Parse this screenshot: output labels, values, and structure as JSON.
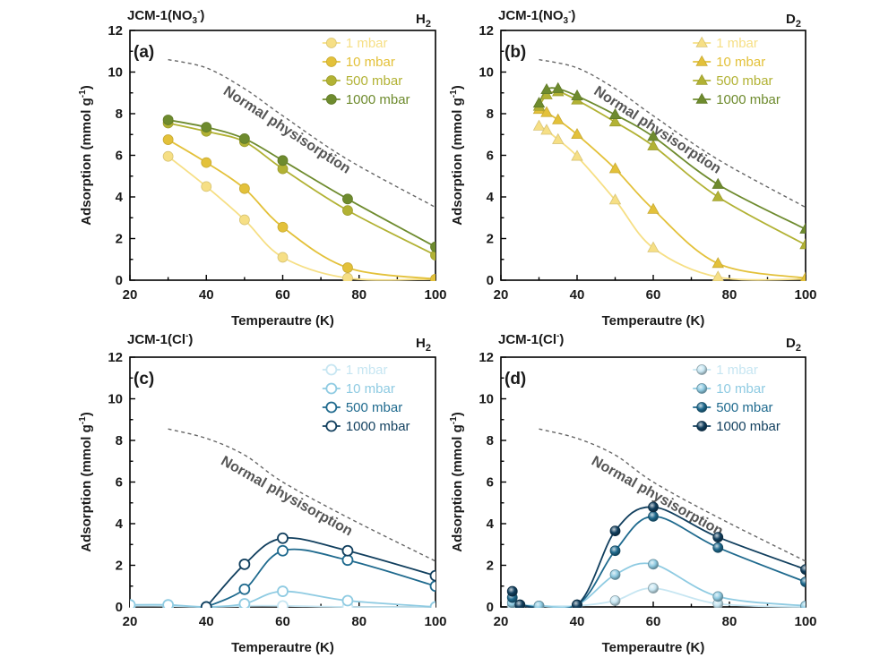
{
  "chart_data": [
    {
      "type": "line",
      "panel_label": "(a)",
      "material": "JCM-1(NO",
      "material_sub": "3",
      "material_sup": "-",
      "material_close": ")",
      "gas": "H",
      "gas_sub": "2",
      "xlabel": "Temperautre (K)",
      "ylabel": "Adsorption (mmol g",
      "ylabel_sup": "-1",
      "ylabel_close": ")",
      "xlim": [
        20,
        100
      ],
      "ylim": [
        0,
        12
      ],
      "xticks": [
        "20",
        "40",
        "60",
        "80",
        "100"
      ],
      "yticks": [
        "0",
        "2",
        "4",
        "6",
        "8",
        "10",
        "12"
      ],
      "marker": "circle",
      "hollow": false,
      "annotation": "Normal physisorption",
      "reference_curve": {
        "x": [
          30,
          40,
          50,
          60,
          77,
          100
        ],
        "y": [
          10.6,
          10.2,
          9.2,
          7.9,
          5.8,
          3.5
        ]
      },
      "series": [
        {
          "name": "1 mbar",
          "color": "#f6df85",
          "x": [
            30,
            40,
            50,
            60,
            77,
            100
          ],
          "y": [
            5.95,
            4.5,
            2.9,
            1.1,
            0.1,
            0.05
          ]
        },
        {
          "name": "10 mbar",
          "color": "#e3c13a",
          "x": [
            30,
            40,
            50,
            60,
            77,
            100
          ],
          "y": [
            6.75,
            5.65,
            4.4,
            2.55,
            0.6,
            0.05
          ]
        },
        {
          "name": "500 mbar",
          "color": "#b2b234",
          "x": [
            30,
            40,
            50,
            60,
            77,
            100
          ],
          "y": [
            7.55,
            7.15,
            6.65,
            5.35,
            3.35,
            1.2
          ]
        },
        {
          "name": "1000 mbar",
          "color": "#6e8b2e",
          "x": [
            30,
            40,
            50,
            60,
            77,
            100
          ],
          "y": [
            7.7,
            7.35,
            6.8,
            5.75,
            3.9,
            1.6
          ]
        }
      ]
    },
    {
      "type": "line",
      "panel_label": "(b)",
      "material": "JCM-1(NO",
      "material_sub": "3",
      "material_sup": "-",
      "material_close": ")",
      "gas": "D",
      "gas_sub": "2",
      "xlabel": "Temperautre (K)",
      "ylabel": "Adsorption (mmol g",
      "ylabel_sup": "-1",
      "ylabel_close": ")",
      "xlim": [
        20,
        100
      ],
      "ylim": [
        0,
        12
      ],
      "xticks": [
        "20",
        "40",
        "60",
        "80",
        "100"
      ],
      "yticks": [
        "0",
        "2",
        "4",
        "6",
        "8",
        "10",
        "12"
      ],
      "marker": "triangle",
      "hollow": false,
      "annotation": "Normal physisorption",
      "reference_curve": {
        "x": [
          30,
          40,
          50,
          60,
          77,
          100
        ],
        "y": [
          10.6,
          10.2,
          9.2,
          7.9,
          5.8,
          3.5
        ]
      },
      "series": [
        {
          "name": "1 mbar",
          "color": "#f6df85",
          "x": [
            30,
            32,
            35,
            40,
            50,
            60,
            77,
            100
          ],
          "y": [
            7.4,
            7.2,
            6.75,
            5.95,
            3.85,
            1.55,
            0.15,
            0.05
          ]
        },
        {
          "name": "10 mbar",
          "color": "#e3c13a",
          "x": [
            30,
            32,
            35,
            40,
            50,
            60,
            77,
            100
          ],
          "y": [
            8.2,
            8.05,
            7.7,
            7.0,
            5.35,
            3.4,
            0.8,
            0.1
          ]
        },
        {
          "name": "500 mbar",
          "color": "#b2b234",
          "x": [
            30,
            32,
            35,
            40,
            50,
            60,
            77,
            100
          ],
          "y": [
            8.35,
            8.9,
            9.05,
            8.65,
            7.6,
            6.45,
            4.0,
            1.7
          ]
        },
        {
          "name": "1000 mbar",
          "color": "#6e8b2e",
          "x": [
            30,
            32,
            35,
            40,
            50,
            60,
            77,
            100
          ],
          "y": [
            8.5,
            9.15,
            9.2,
            8.85,
            7.95,
            6.9,
            4.6,
            2.45
          ]
        }
      ]
    },
    {
      "type": "line",
      "panel_label": "(c)",
      "material": "JCM-1(Cl",
      "material_sub": "",
      "material_sup": "-",
      "material_close": ")",
      "gas": "H",
      "gas_sub": "2",
      "xlabel": "Temperautre (K)",
      "ylabel": "Adsorption (mmol g",
      "ylabel_sup": "-1",
      "ylabel_close": ")",
      "xlim": [
        20,
        100
      ],
      "ylim": [
        0,
        12
      ],
      "xticks": [
        "20",
        "40",
        "60",
        "80",
        "100"
      ],
      "yticks": [
        "0",
        "2",
        "4",
        "6",
        "8",
        "10",
        "12"
      ],
      "marker": "circle",
      "hollow": true,
      "annotation": "Normal physisorption",
      "reference_curve": {
        "x": [
          30,
          40,
          50,
          60,
          77,
          100
        ],
        "y": [
          8.55,
          8.1,
          7.3,
          6.0,
          4.3,
          2.2
        ]
      },
      "series": [
        {
          "name": "1 mbar",
          "color": "#c7e6f2",
          "x": [
            20,
            30,
            40,
            50,
            60,
            77,
            100
          ],
          "y": [
            0.05,
            0.05,
            0.0,
            0.05,
            0.05,
            0.0,
            0.0
          ]
        },
        {
          "name": "10 mbar",
          "color": "#8fcbe2",
          "x": [
            20,
            30,
            40,
            50,
            60,
            77,
            100
          ],
          "y": [
            0.1,
            0.1,
            0.0,
            0.15,
            0.75,
            0.3,
            0.0
          ]
        },
        {
          "name": "500 mbar",
          "color": "#1f6a8e",
          "x": [
            40,
            50,
            60,
            77,
            100
          ],
          "y": [
            0.0,
            0.85,
            2.7,
            2.25,
            1.0
          ]
        },
        {
          "name": "1000 mbar",
          "color": "#113f5e",
          "x": [
            40,
            50,
            60,
            77,
            100
          ],
          "y": [
            0.0,
            2.05,
            3.3,
            2.7,
            1.5
          ]
        }
      ]
    },
    {
      "type": "line",
      "panel_label": "(d)",
      "material": "JCM-1(Cl",
      "material_sub": "",
      "material_sup": "-",
      "material_close": ")",
      "gas": "D",
      "gas_sub": "2",
      "xlabel": "Temperautre (K)",
      "ylabel": "Adsorption (mmol g",
      "ylabel_sup": "-1",
      "ylabel_close": ")",
      "xlim": [
        20,
        100
      ],
      "ylim": [
        0,
        12
      ],
      "xticks": [
        "20",
        "40",
        "60",
        "80",
        "100"
      ],
      "yticks": [
        "0",
        "2",
        "4",
        "6",
        "8",
        "10",
        "12"
      ],
      "marker": "sphere",
      "hollow": false,
      "annotation": "Normal physisorption",
      "reference_curve": {
        "x": [
          30,
          40,
          50,
          60,
          77,
          100
        ],
        "y": [
          8.55,
          8.1,
          7.3,
          6.0,
          4.3,
          2.2
        ]
      },
      "series": [
        {
          "name": "1 mbar",
          "color": "#c7e6f2",
          "x": [
            23,
            25,
            30,
            40,
            50,
            60,
            77,
            100
          ],
          "y": [
            0.05,
            0.05,
            0.05,
            0.05,
            0.3,
            0.9,
            0.15,
            0.0
          ]
        },
        {
          "name": "10 mbar",
          "color": "#8fcbe2",
          "x": [
            23,
            25,
            30,
            40,
            50,
            60,
            77,
            100
          ],
          "y": [
            0.2,
            0.1,
            0.05,
            0.1,
            1.55,
            2.05,
            0.5,
            0.05
          ]
        },
        {
          "name": "500 mbar",
          "color": "#1f6a8e",
          "x": [
            23,
            25,
            40,
            50,
            60,
            77,
            100
          ],
          "y": [
            0.45,
            0.1,
            0.1,
            2.7,
            4.35,
            2.85,
            1.2
          ]
        },
        {
          "name": "1000 mbar",
          "color": "#113f5e",
          "x": [
            23,
            25,
            40,
            50,
            60,
            77,
            100
          ],
          "y": [
            0.75,
            0.1,
            0.1,
            3.65,
            4.8,
            3.35,
            1.8
          ]
        }
      ]
    }
  ]
}
